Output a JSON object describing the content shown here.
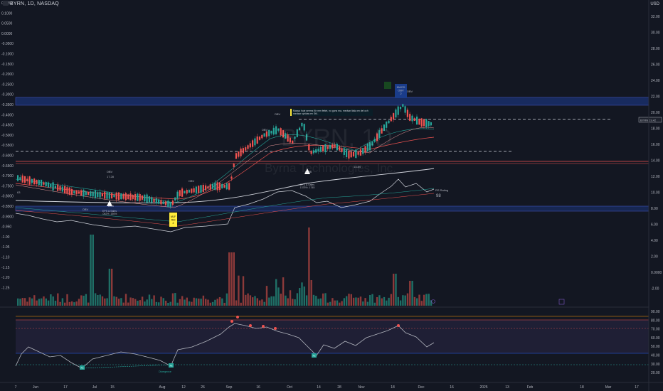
{
  "header": {
    "title": "BYRN, 1D, NASDAQ"
  },
  "currency": "USD",
  "watermark": {
    "ticker": "BYRN, 1D",
    "name": "Byrna Technologies, Inc."
  },
  "left_axis": [
    "0.1050",
    "0.1000",
    "0.0500",
    "0.0000",
    "-0.0500",
    "-0.1000",
    "-0.1500",
    "-0.2000",
    "-0.2500",
    "-0.3000",
    "-0.3500",
    "-0.4000",
    "-0.4500",
    "-0.5000",
    "-0.5500",
    "-0.6000",
    "-0.6500",
    "-0.7000",
    "-0.7500",
    "-0.8000",
    "-0.8500",
    "-0.9000",
    "-0.950",
    "-1.00",
    "-1.05",
    "-1.10",
    "-1.15",
    "-1.20",
    "-1.25"
  ],
  "right_axis": [
    "32.00",
    "30.00",
    "28.00",
    "26.00",
    "24.00",
    "22.00",
    "20.00",
    "18.00",
    "16.00",
    "14.00",
    "12.00",
    "10.00",
    "8.00",
    "6.00",
    "4.00",
    "2.00",
    "0.0000",
    "-2.00"
  ],
  "rsi_axis": [
    "90.00",
    "80.00",
    "70.00",
    "60.00",
    "50.00",
    "40.00",
    "30.00",
    "20.00"
  ],
  "x_axis": [
    "7",
    "Jun",
    "17",
    "Jul",
    "15",
    "Aug",
    "12",
    "26",
    "Sep",
    "16",
    "Oct",
    "14",
    "28",
    "Nov",
    "18",
    "Dec",
    "16",
    "2025",
    "13",
    "Feb",
    "18",
    "Mar",
    "17"
  ],
  "price_tag": "BYRN  19.42",
  "labels": {
    "obv": "OBV",
    "macd_obv": "MACD\nOBV\n2",
    "mlf_box": "MLF\nRSI\n2",
    "rs_rating": "RS Rating",
    "rs_value": "98",
    "eps_sales_1": "EPS & Sales",
    "eps_sales_2": "EPS & Sales",
    "eps_val_1": ".062%  .156%",
    "eps_val_2": "1375%  .1745",
    "val_1728": "17.28",
    "val_1158": "11.58",
    "val_1384": "13.84",
    "val_825": "8.25",
    "val_63": "63",
    "divergence": "Divergence",
    "left_badge": "62%"
  },
  "note_text": "Massa hoje seems för mm fettet, no guns ma- medsar läsla en del och medsar spridas en Stil..",
  "rsi_badges": [
    "Rs",
    "Rs",
    "Rs"
  ],
  "colors": {
    "bg": "#131722",
    "up": "#26a69a",
    "down": "#ef5350",
    "grid": "#1e222d",
    "band": "#2962ff",
    "rsi": "#b2b5be"
  }
}
